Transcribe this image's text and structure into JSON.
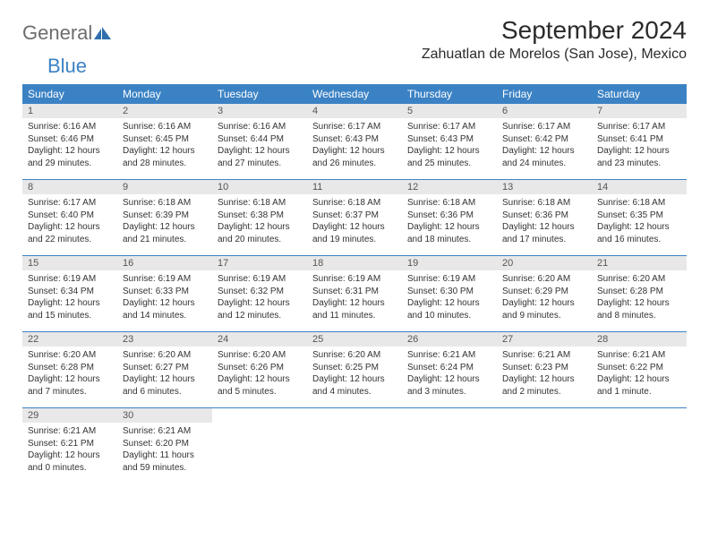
{
  "logo": {
    "text1": "General",
    "text2": "Blue"
  },
  "title": "September 2024",
  "location": "Zahuatlan de Morelos (San Jose), Mexico",
  "colors": {
    "header_bg": "#3b82c4",
    "daynum_bg": "#e8e8e8",
    "border": "#3b82c4"
  },
  "day_labels": [
    "Sunday",
    "Monday",
    "Tuesday",
    "Wednesday",
    "Thursday",
    "Friday",
    "Saturday"
  ],
  "weeks": [
    [
      {
        "n": "1",
        "sr": "Sunrise: 6:16 AM",
        "ss": "Sunset: 6:46 PM",
        "d1": "Daylight: 12 hours",
        "d2": "and 29 minutes."
      },
      {
        "n": "2",
        "sr": "Sunrise: 6:16 AM",
        "ss": "Sunset: 6:45 PM",
        "d1": "Daylight: 12 hours",
        "d2": "and 28 minutes."
      },
      {
        "n": "3",
        "sr": "Sunrise: 6:16 AM",
        "ss": "Sunset: 6:44 PM",
        "d1": "Daylight: 12 hours",
        "d2": "and 27 minutes."
      },
      {
        "n": "4",
        "sr": "Sunrise: 6:17 AM",
        "ss": "Sunset: 6:43 PM",
        "d1": "Daylight: 12 hours",
        "d2": "and 26 minutes."
      },
      {
        "n": "5",
        "sr": "Sunrise: 6:17 AM",
        "ss": "Sunset: 6:43 PM",
        "d1": "Daylight: 12 hours",
        "d2": "and 25 minutes."
      },
      {
        "n": "6",
        "sr": "Sunrise: 6:17 AM",
        "ss": "Sunset: 6:42 PM",
        "d1": "Daylight: 12 hours",
        "d2": "and 24 minutes."
      },
      {
        "n": "7",
        "sr": "Sunrise: 6:17 AM",
        "ss": "Sunset: 6:41 PM",
        "d1": "Daylight: 12 hours",
        "d2": "and 23 minutes."
      }
    ],
    [
      {
        "n": "8",
        "sr": "Sunrise: 6:17 AM",
        "ss": "Sunset: 6:40 PM",
        "d1": "Daylight: 12 hours",
        "d2": "and 22 minutes."
      },
      {
        "n": "9",
        "sr": "Sunrise: 6:18 AM",
        "ss": "Sunset: 6:39 PM",
        "d1": "Daylight: 12 hours",
        "d2": "and 21 minutes."
      },
      {
        "n": "10",
        "sr": "Sunrise: 6:18 AM",
        "ss": "Sunset: 6:38 PM",
        "d1": "Daylight: 12 hours",
        "d2": "and 20 minutes."
      },
      {
        "n": "11",
        "sr": "Sunrise: 6:18 AM",
        "ss": "Sunset: 6:37 PM",
        "d1": "Daylight: 12 hours",
        "d2": "and 19 minutes."
      },
      {
        "n": "12",
        "sr": "Sunrise: 6:18 AM",
        "ss": "Sunset: 6:36 PM",
        "d1": "Daylight: 12 hours",
        "d2": "and 18 minutes."
      },
      {
        "n": "13",
        "sr": "Sunrise: 6:18 AM",
        "ss": "Sunset: 6:36 PM",
        "d1": "Daylight: 12 hours",
        "d2": "and 17 minutes."
      },
      {
        "n": "14",
        "sr": "Sunrise: 6:18 AM",
        "ss": "Sunset: 6:35 PM",
        "d1": "Daylight: 12 hours",
        "d2": "and 16 minutes."
      }
    ],
    [
      {
        "n": "15",
        "sr": "Sunrise: 6:19 AM",
        "ss": "Sunset: 6:34 PM",
        "d1": "Daylight: 12 hours",
        "d2": "and 15 minutes."
      },
      {
        "n": "16",
        "sr": "Sunrise: 6:19 AM",
        "ss": "Sunset: 6:33 PM",
        "d1": "Daylight: 12 hours",
        "d2": "and 14 minutes."
      },
      {
        "n": "17",
        "sr": "Sunrise: 6:19 AM",
        "ss": "Sunset: 6:32 PM",
        "d1": "Daylight: 12 hours",
        "d2": "and 12 minutes."
      },
      {
        "n": "18",
        "sr": "Sunrise: 6:19 AM",
        "ss": "Sunset: 6:31 PM",
        "d1": "Daylight: 12 hours",
        "d2": "and 11 minutes."
      },
      {
        "n": "19",
        "sr": "Sunrise: 6:19 AM",
        "ss": "Sunset: 6:30 PM",
        "d1": "Daylight: 12 hours",
        "d2": "and 10 minutes."
      },
      {
        "n": "20",
        "sr": "Sunrise: 6:20 AM",
        "ss": "Sunset: 6:29 PM",
        "d1": "Daylight: 12 hours",
        "d2": "and 9 minutes."
      },
      {
        "n": "21",
        "sr": "Sunrise: 6:20 AM",
        "ss": "Sunset: 6:28 PM",
        "d1": "Daylight: 12 hours",
        "d2": "and 8 minutes."
      }
    ],
    [
      {
        "n": "22",
        "sr": "Sunrise: 6:20 AM",
        "ss": "Sunset: 6:28 PM",
        "d1": "Daylight: 12 hours",
        "d2": "and 7 minutes."
      },
      {
        "n": "23",
        "sr": "Sunrise: 6:20 AM",
        "ss": "Sunset: 6:27 PM",
        "d1": "Daylight: 12 hours",
        "d2": "and 6 minutes."
      },
      {
        "n": "24",
        "sr": "Sunrise: 6:20 AM",
        "ss": "Sunset: 6:26 PM",
        "d1": "Daylight: 12 hours",
        "d2": "and 5 minutes."
      },
      {
        "n": "25",
        "sr": "Sunrise: 6:20 AM",
        "ss": "Sunset: 6:25 PM",
        "d1": "Daylight: 12 hours",
        "d2": "and 4 minutes."
      },
      {
        "n": "26",
        "sr": "Sunrise: 6:21 AM",
        "ss": "Sunset: 6:24 PM",
        "d1": "Daylight: 12 hours",
        "d2": "and 3 minutes."
      },
      {
        "n": "27",
        "sr": "Sunrise: 6:21 AM",
        "ss": "Sunset: 6:23 PM",
        "d1": "Daylight: 12 hours",
        "d2": "and 2 minutes."
      },
      {
        "n": "28",
        "sr": "Sunrise: 6:21 AM",
        "ss": "Sunset: 6:22 PM",
        "d1": "Daylight: 12 hours",
        "d2": "and 1 minute."
      }
    ],
    [
      {
        "n": "29",
        "sr": "Sunrise: 6:21 AM",
        "ss": "Sunset: 6:21 PM",
        "d1": "Daylight: 12 hours",
        "d2": "and 0 minutes."
      },
      {
        "n": "30",
        "sr": "Sunrise: 6:21 AM",
        "ss": "Sunset: 6:20 PM",
        "d1": "Daylight: 11 hours",
        "d2": "and 59 minutes."
      },
      null,
      null,
      null,
      null,
      null
    ]
  ]
}
